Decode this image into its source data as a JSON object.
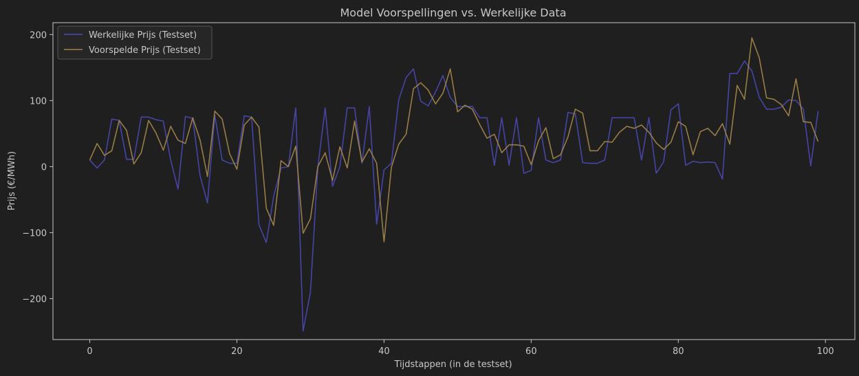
{
  "chart_data": {
    "type": "line",
    "title": "Model Voorspellingen vs. Werkelijke Data",
    "xlabel": "Tijdstappen (in de testset)",
    "ylabel": "Prijs (€/MWh)",
    "xlim": [
      -5,
      104
    ],
    "ylim": [
      -262,
      218
    ],
    "x_ticks": [
      0,
      20,
      40,
      60,
      80,
      100
    ],
    "y_ticks": [
      -200,
      -100,
      0,
      100,
      200
    ],
    "x_tick_labels": [
      "0",
      "20",
      "40",
      "60",
      "80",
      "100"
    ],
    "y_tick_labels": [
      "−200",
      "−100",
      "0",
      "100",
      "200"
    ],
    "legend_position": "top-left",
    "grid": false,
    "series": [
      {
        "name": "Werkelijke Prijs (Testset)",
        "color": "#4c4cc0",
        "values": [
          10,
          -2,
          10,
          72,
          70,
          11,
          11,
          75,
          75,
          71,
          69,
          10,
          -34,
          76,
          73,
          -14,
          -55,
          78,
          10,
          5,
          5,
          77,
          75,
          -88,
          -115,
          -45,
          -2,
          0,
          89,
          -249,
          -190,
          -1,
          89,
          -30,
          0,
          89,
          89,
          5,
          91,
          -87,
          -5,
          5,
          101,
          135,
          148,
          99,
          92,
          113,
          138,
          105,
          91,
          91,
          91,
          74,
          74,
          2,
          74,
          2,
          74,
          -10,
          -6,
          74,
          10,
          6,
          10,
          82,
          80,
          6,
          5,
          5,
          10,
          74,
          74,
          74,
          74,
          10,
          74,
          -10,
          7,
          86,
          95,
          2,
          8,
          6,
          7,
          6,
          -19,
          141,
          141,
          160,
          145,
          105,
          87,
          87,
          90,
          101,
          100,
          87,
          1,
          84
        ]
      },
      {
        "name": "Voorspelde Prijs (Testset)",
        "color": "#a0834a",
        "values": [
          10,
          35,
          17,
          24,
          70,
          55,
          4,
          21,
          70,
          51,
          25,
          61,
          40,
          35,
          74,
          40,
          -15,
          84,
          72,
          20,
          -4,
          63,
          75,
          60,
          -63,
          -89,
          9,
          0,
          31,
          -101,
          -79,
          0,
          21,
          -21,
          30,
          -2,
          69,
          7,
          27,
          5,
          -114,
          -1,
          34,
          49,
          118,
          127,
          116,
          95,
          111,
          148,
          83,
          93,
          87,
          64,
          43,
          49,
          21,
          33,
          33,
          31,
          3,
          39,
          59,
          12,
          18,
          45,
          87,
          81,
          24,
          24,
          38,
          37,
          52,
          61,
          58,
          63,
          52,
          36,
          26,
          37,
          68,
          61,
          18,
          53,
          58,
          47,
          65,
          34,
          123,
          102,
          195,
          165,
          104,
          102,
          94,
          77,
          133,
          68,
          67,
          38
        ]
      }
    ]
  }
}
